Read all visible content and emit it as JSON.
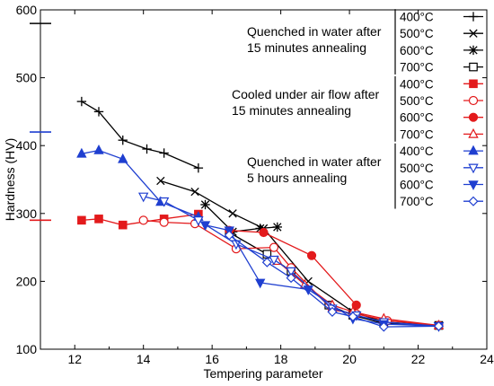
{
  "chart_data": {
    "type": "line",
    "xlabel": "Tempering parameter",
    "ylabel": "Hardness (HV)",
    "xlim": [
      11,
      24
    ],
    "ylim": [
      100,
      600
    ],
    "xticks": [
      "12",
      "14",
      "16",
      "18",
      "20",
      "22",
      "24"
    ],
    "yticks": [
      "100",
      "200",
      "300",
      "400",
      "500",
      "600"
    ],
    "grid": false,
    "reference_marks": [
      {
        "y": 580,
        "color": "#000000"
      },
      {
        "y": 420,
        "color": "#1f3fd0"
      },
      {
        "y": 290,
        "color": "#e31a1c"
      }
    ],
    "groups": [
      {
        "label": [
          "Quenched in water after",
          "15 minutes annealing"
        ],
        "color": "#000000"
      },
      {
        "label": [
          "Cooled under air flow after",
          "15 minutes annealing"
        ],
        "color": "#e31a1c"
      },
      {
        "label": [
          "Quenched in water after",
          "5 hours annealing"
        ],
        "color": "#1f3fd0"
      }
    ],
    "series": [
      {
        "name": "400°C",
        "group": 0,
        "color": "#000000",
        "marker": "plus",
        "x": [
          12.2,
          12.7,
          13.4,
          14.1,
          14.6,
          15.6
        ],
        "y": [
          465,
          450,
          408,
          395,
          389,
          367
        ]
      },
      {
        "name": "500°C",
        "group": 0,
        "color": "#000000",
        "marker": "x",
        "x": [
          14.5,
          15.5,
          16.6,
          17.5,
          18.8,
          20.1,
          21.0,
          22.6
        ],
        "y": [
          348,
          332,
          300,
          278,
          200,
          155,
          140,
          135
        ]
      },
      {
        "name": "600°C",
        "group": 0,
        "color": "#000000",
        "marker": "star",
        "x": [
          15.8,
          16.6,
          17.4,
          17.9
        ],
        "y": [
          313,
          273,
          278,
          280
        ]
      },
      {
        "name": "700°C",
        "group": 0,
        "color": "#000000",
        "marker": "square-open",
        "x": [
          16.5,
          17.6,
          18.3,
          19.4,
          20.1,
          21.0,
          22.6
        ],
        "y": [
          272,
          240,
          215,
          165,
          150,
          138,
          135
        ]
      },
      {
        "name": "400°C",
        "group": 1,
        "color": "#e31a1c",
        "marker": "square-filled",
        "x": [
          12.2,
          12.7,
          13.4,
          14.6,
          15.6
        ],
        "y": [
          290,
          292,
          283,
          292,
          299
        ]
      },
      {
        "name": "500°C",
        "group": 1,
        "color": "#e31a1c",
        "marker": "circle-open",
        "x": [
          14.0,
          14.6,
          15.5,
          16.7,
          17.8,
          18.3,
          19.5,
          20.2,
          21.1,
          22.6
        ],
        "y": [
          290,
          287,
          285,
          248,
          250,
          220,
          158,
          152,
          142,
          135
        ]
      },
      {
        "name": "600°C",
        "group": 1,
        "color": "#e31a1c",
        "marker": "circle-filled",
        "x": [
          16.5,
          17.5,
          18.9,
          20.2
        ],
        "y": [
          275,
          272,
          238,
          165
        ]
      },
      {
        "name": "700°C",
        "group": 1,
        "color": "#e31a1c",
        "marker": "triangle-open",
        "x": [
          17.9,
          18.7,
          19.5,
          20.1,
          21.0,
          22.6
        ],
        "y": [
          230,
          195,
          165,
          155,
          145,
          135
        ]
      },
      {
        "name": "400°C",
        "group": 2,
        "color": "#1f3fd0",
        "marker": "triangle-filled",
        "x": [
          12.2,
          12.7,
          13.4,
          14.5,
          15.6
        ],
        "y": [
          388,
          393,
          380,
          317,
          295
        ]
      },
      {
        "name": "500°C",
        "group": 2,
        "color": "#1f3fd0",
        "marker": "triangle-down-open",
        "x": [
          14.0,
          14.6,
          15.6,
          16.7,
          17.8,
          18.3,
          19.5,
          20.2,
          21.0,
          22.6
        ],
        "y": [
          325,
          318,
          290,
          255,
          232,
          215,
          160,
          150,
          140,
          134
        ]
      },
      {
        "name": "600°C",
        "group": 2,
        "color": "#1f3fd0",
        "marker": "triangle-down-filled",
        "x": [
          15.8,
          16.5,
          17.4,
          18.8,
          20.1,
          21.0,
          22.6
        ],
        "y": [
          283,
          275,
          198,
          188,
          145,
          137,
          134
        ]
      },
      {
        "name": "700°C",
        "group": 2,
        "color": "#1f3fd0",
        "marker": "diamond-open",
        "x": [
          16.5,
          17.6,
          18.3,
          19.5,
          20.1,
          21.0,
          22.6
        ],
        "y": [
          268,
          228,
          205,
          155,
          148,
          133,
          134
        ]
      }
    ]
  }
}
